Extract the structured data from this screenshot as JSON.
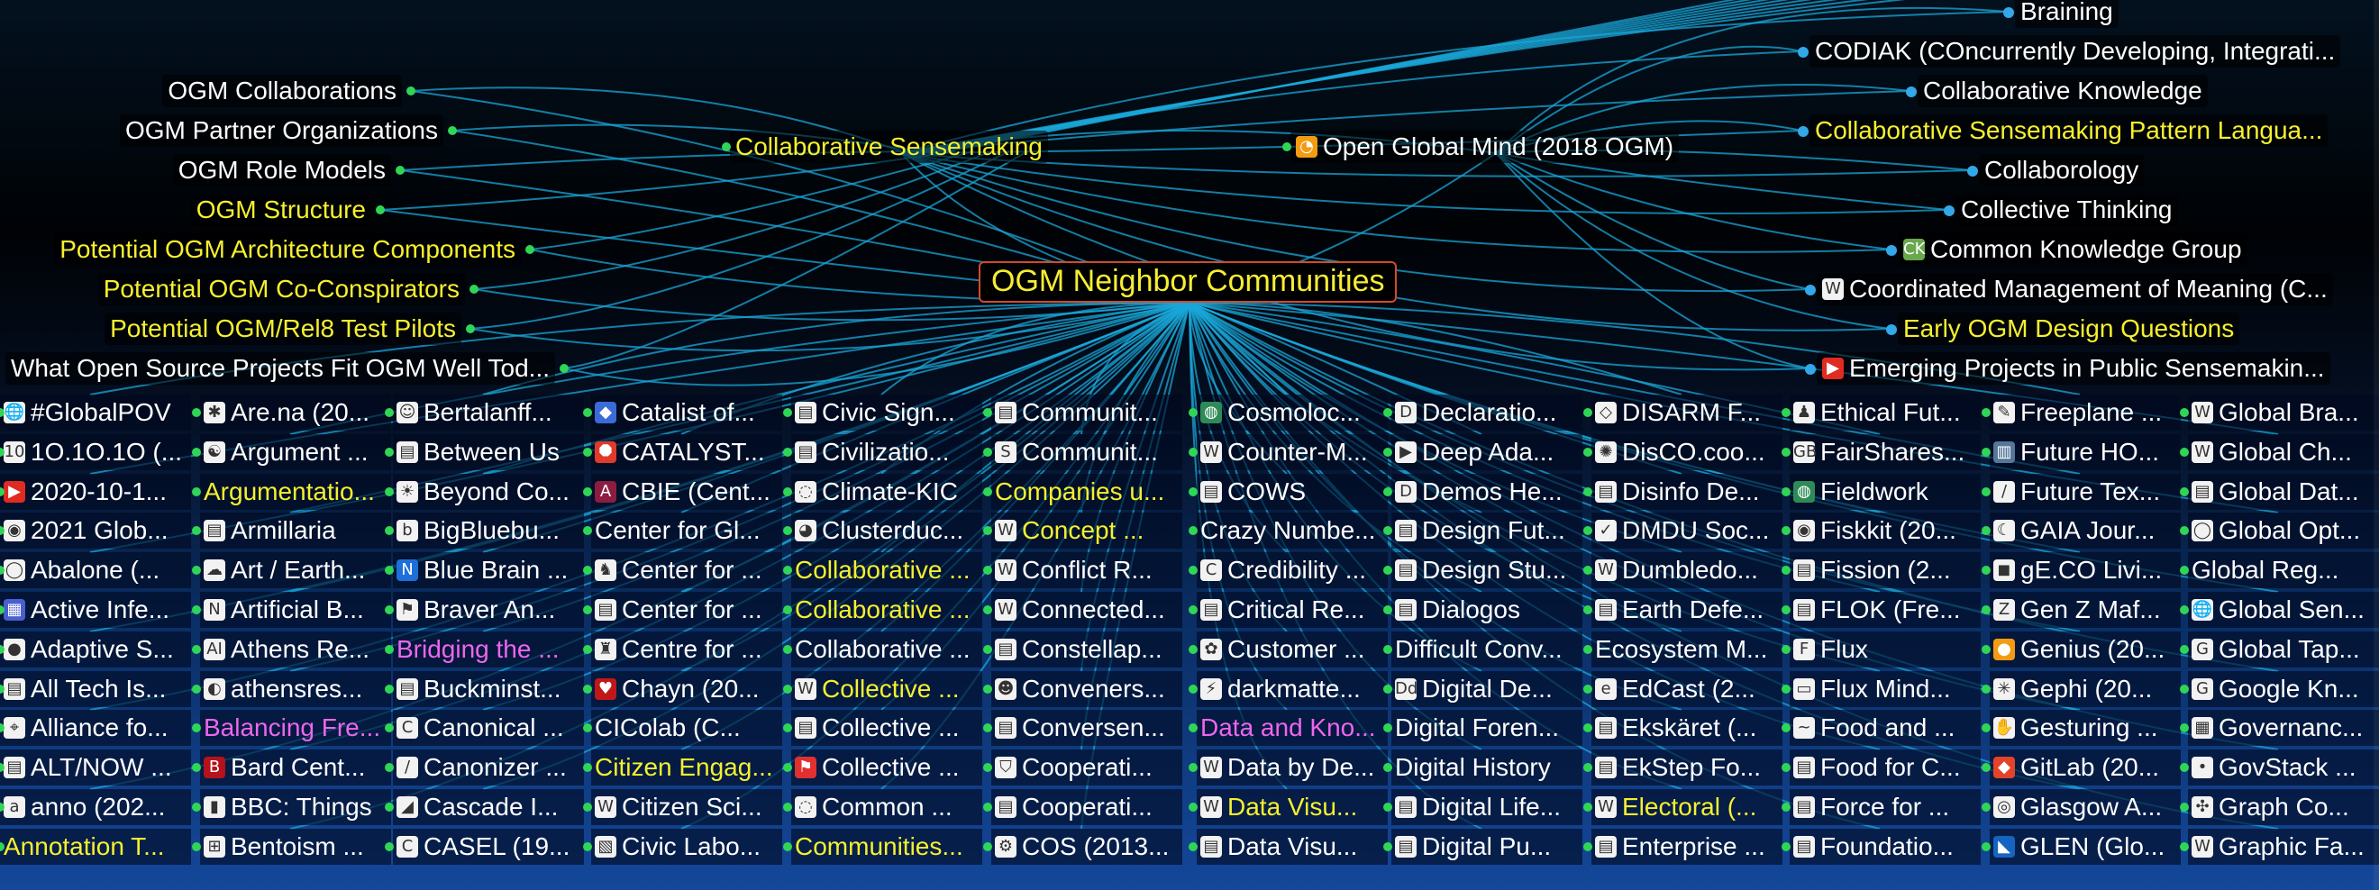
{
  "center": {
    "label": "OGM Neighbor Communities"
  },
  "left_nodes": [
    {
      "label": "OGM Collaborations",
      "color": "white"
    },
    {
      "label": "OGM Partner Organizations",
      "color": "white"
    },
    {
      "label": "OGM Role Models",
      "color": "white"
    },
    {
      "label": "OGM Structure",
      "color": "yellow"
    },
    {
      "label": "Potential OGM Architecture Components",
      "color": "yellow"
    },
    {
      "label": "Potential OGM Co-Conspirators",
      "color": "yellow"
    },
    {
      "label": "Potential OGM/Rel8 Test Pilots",
      "color": "yellow"
    },
    {
      "label": "What Open Source Projects Fit OGM Well Tod...",
      "color": "white"
    }
  ],
  "top_middle_nodes": [
    {
      "label": "Collaborative Sensemaking",
      "color": "yellow",
      "icon": ""
    },
    {
      "label": "Open Global Mind (2018 OGM)",
      "color": "white",
      "icon": "ogm-icon"
    }
  ],
  "right_nodes": [
    {
      "label": "Braining",
      "color": "white",
      "icon": ""
    },
    {
      "label": "CODIAK (COncurrently Developing, Integrati...",
      "color": "white",
      "icon": ""
    },
    {
      "label": "Collaborative Knowledge",
      "color": "white",
      "icon": ""
    },
    {
      "label": "Collaborative Sensemaking Pattern Langua...",
      "color": "yellow",
      "icon": ""
    },
    {
      "label": "Collaborology",
      "color": "white",
      "icon": ""
    },
    {
      "label": "Collective Thinking",
      "color": "white",
      "icon": ""
    },
    {
      "label": "Common Knowledge Group",
      "color": "white",
      "icon": "ck-icon"
    },
    {
      "label": "Coordinated Management of Meaning (C...",
      "color": "white",
      "icon": "wikipedia-icon"
    },
    {
      "label": "Early OGM Design Questions",
      "color": "yellow",
      "icon": ""
    },
    {
      "label": "Emerging Projects in Public Sensemakin...",
      "color": "white",
      "icon": "youtube-icon"
    }
  ],
  "grid_columns": [
    [
      {
        "label": "#GlobalPOV",
        "color": "white",
        "icon": "globe-icon"
      },
      {
        "label": "1O.1O.1O (...",
        "color": "white",
        "icon": "ten-icon"
      },
      {
        "label": "2020-10-1...",
        "color": "white",
        "icon": "youtube-icon"
      },
      {
        "label": "2021 Glob...",
        "color": "white",
        "icon": "camera-icon"
      },
      {
        "label": "Abalone (...",
        "color": "white",
        "icon": "ring-icon"
      },
      {
        "label": "Active Infe...",
        "color": "white",
        "icon": "calendar-icon"
      },
      {
        "label": "Adaptive S...",
        "color": "white",
        "icon": "circle-icon"
      },
      {
        "label": "All Tech Is...",
        "color": "white",
        "icon": "doc-icon"
      },
      {
        "label": "Alliance fo...",
        "color": "white",
        "icon": "map-icon"
      },
      {
        "label": "ALT/NOW ...",
        "color": "white",
        "icon": "doc-icon"
      },
      {
        "label": "anno (202...",
        "color": "white",
        "icon": "a-icon"
      },
      {
        "label": "Annotation T...",
        "color": "yellow",
        "icon": ""
      }
    ],
    [
      {
        "label": "Are.na (20...",
        "color": "white",
        "icon": "star-icon"
      },
      {
        "label": "Argument ...",
        "color": "white",
        "icon": "yinyang-icon"
      },
      {
        "label": "Argumentatio...",
        "color": "yellow",
        "icon": ""
      },
      {
        "label": "Armillaria",
        "color": "white",
        "icon": "doc-icon"
      },
      {
        "label": "Art / Earth...",
        "color": "white",
        "icon": "cloud-icon"
      },
      {
        "label": "Artificial B...",
        "color": "white",
        "icon": "n-icon"
      },
      {
        "label": "Athens Re...",
        "color": "white",
        "icon": "ai-icon"
      },
      {
        "label": "athensres...",
        "color": "white",
        "icon": "github-icon"
      },
      {
        "label": "Balancing Fre...",
        "color": "pink",
        "icon": ""
      },
      {
        "label": "Bard Cent...",
        "color": "white",
        "icon": "b-icon"
      },
      {
        "label": "BBC: Things",
        "color": "white",
        "icon": "bbc-icon"
      },
      {
        "label": "Bentoism ...",
        "color": "white",
        "icon": "grid-icon"
      }
    ],
    [
      {
        "label": "Bertalanff...",
        "color": "white",
        "icon": "face-icon"
      },
      {
        "label": "Between Us",
        "color": "white",
        "icon": "doc-icon"
      },
      {
        "label": "Beyond Co...",
        "color": "white",
        "icon": "sun-icon"
      },
      {
        "label": "BigBluebu...",
        "color": "white",
        "icon": "b-circle-icon"
      },
      {
        "label": "Blue Brain ...",
        "color": "white",
        "icon": "n-blue-icon"
      },
      {
        "label": "Braver An...",
        "color": "white",
        "icon": "flag-icon"
      },
      {
        "label": "Bridging the ...",
        "color": "pink",
        "icon": ""
      },
      {
        "label": "Buckminst...",
        "color": "white",
        "icon": "doc-icon"
      },
      {
        "label": "Canonical ...",
        "color": "white",
        "icon": "c-icon"
      },
      {
        "label": "Canonizer ...",
        "color": "white",
        "icon": "slash-icon"
      },
      {
        "label": "Cascade I...",
        "color": "white",
        "icon": "cascade-icon"
      },
      {
        "label": "CASEL (19...",
        "color": "white",
        "icon": "casel-icon"
      }
    ],
    [
      {
        "label": "Catalist of...",
        "color": "white",
        "icon": "cube-icon"
      },
      {
        "label": "CATALYST...",
        "color": "white",
        "icon": "octagon-icon"
      },
      {
        "label": "CBIE (Cent...",
        "color": "white",
        "icon": "asu-icon"
      },
      {
        "label": "Center for Gl...",
        "color": "white",
        "icon": ""
      },
      {
        "label": "Center for ...",
        "color": "white",
        "icon": "deer-icon"
      },
      {
        "label": "Center for ...",
        "color": "white",
        "icon": "doc-icon"
      },
      {
        "label": "Centre for ...",
        "color": "white",
        "icon": "crest-icon"
      },
      {
        "label": "Chayn (20...",
        "color": "white",
        "icon": "heart-icon"
      },
      {
        "label": "CIColab (C...",
        "color": "white",
        "icon": ""
      },
      {
        "label": "Citizen Engag...",
        "color": "yellow",
        "icon": ""
      },
      {
        "label": "Citizen Sci...",
        "color": "white",
        "icon": "wikipedia-icon"
      },
      {
        "label": "Civic Labo...",
        "color": "white",
        "icon": "civic-icon"
      }
    ],
    [
      {
        "label": "Civic Sign...",
        "color": "white",
        "icon": "doc-icon"
      },
      {
        "label": "Civilizatio...",
        "color": "white",
        "icon": "doc-icon"
      },
      {
        "label": "Climate-KIC",
        "color": "white",
        "icon": "spiral-icon"
      },
      {
        "label": "Clusterduc...",
        "color": "white",
        "icon": "duck-icon"
      },
      {
        "label": "Collaborative ...",
        "color": "yellow",
        "icon": ""
      },
      {
        "label": "Collaborative ...",
        "color": "yellow",
        "icon": ""
      },
      {
        "label": "Collaborative ...",
        "color": "white",
        "icon": ""
      },
      {
        "label": "Collective ...",
        "color": "yellow",
        "icon": "wikipedia-icon"
      },
      {
        "label": "Collective ...",
        "color": "white",
        "icon": "doc-icon"
      },
      {
        "label": "Collective ...",
        "color": "white",
        "icon": "flag-red-icon"
      },
      {
        "label": "Common ...",
        "color": "white",
        "icon": "spiral-icon"
      },
      {
        "label": "Communities...",
        "color": "yellow",
        "icon": ""
      }
    ],
    [
      {
        "label": "Communit...",
        "color": "white",
        "icon": "doc-icon"
      },
      {
        "label": "Communit...",
        "color": "white",
        "icon": "s-icon"
      },
      {
        "label": "Companies u...",
        "color": "yellow",
        "icon": ""
      },
      {
        "label": "Concept ...",
        "color": "yellow",
        "icon": "wikipedia-icon"
      },
      {
        "label": "Conflict R...",
        "color": "white",
        "icon": "wikipedia-icon"
      },
      {
        "label": "Connected...",
        "color": "white",
        "icon": "wordpress-icon"
      },
      {
        "label": "Constellap...",
        "color": "white",
        "icon": "doc-icon"
      },
      {
        "label": "Conveners...",
        "color": "white",
        "icon": "people-icon"
      },
      {
        "label": "Conversen...",
        "color": "white",
        "icon": "doc-icon"
      },
      {
        "label": "Cooperati...",
        "color": "white",
        "icon": "shield-icon"
      },
      {
        "label": "Cooperati...",
        "color": "white",
        "icon": "doc-icon"
      },
      {
        "label": "COS (2013...",
        "color": "white",
        "icon": "cos-icon"
      }
    ],
    [
      {
        "label": "Cosmoloc...",
        "color": "white",
        "icon": "globe-green-icon"
      },
      {
        "label": "Counter-M...",
        "color": "white",
        "icon": "wikipedia-icon"
      },
      {
        "label": "COWS",
        "color": "white",
        "icon": "doc-icon"
      },
      {
        "label": "Crazy Numbe...",
        "color": "white",
        "icon": ""
      },
      {
        "label": "Credibility ...",
        "color": "white",
        "icon": "c-ring-icon"
      },
      {
        "label": "Critical Re...",
        "color": "white",
        "icon": "doc-icon"
      },
      {
        "label": "Customer ...",
        "color": "white",
        "icon": "flower-icon"
      },
      {
        "label": "darkmatte...",
        "color": "white",
        "icon": "bolt-icon"
      },
      {
        "label": "Data and Kno...",
        "color": "pink",
        "icon": ""
      },
      {
        "label": "Data by De...",
        "color": "white",
        "icon": "wordpress-icon"
      },
      {
        "label": "Data Visu...",
        "color": "yellow",
        "icon": "wikipedia-icon"
      },
      {
        "label": "Data Visu...",
        "color": "white",
        "icon": "doc-icon"
      }
    ],
    [
      {
        "label": "Declaratio...",
        "color": "white",
        "icon": "decl-icon"
      },
      {
        "label": "Deep Ada...",
        "color": "white",
        "icon": "play-icon"
      },
      {
        "label": "Demos He...",
        "color": "white",
        "icon": "d-icon"
      },
      {
        "label": "Design Fut...",
        "color": "white",
        "icon": "doc-icon"
      },
      {
        "label": "Design Stu...",
        "color": "white",
        "icon": "doc-icon"
      },
      {
        "label": "Dialogos",
        "color": "white",
        "icon": "doc-icon"
      },
      {
        "label": "Difficult Conv...",
        "color": "white",
        "icon": ""
      },
      {
        "label": "Digital De...",
        "color": "white",
        "icon": "dd-icon"
      },
      {
        "label": "Digital Foren...",
        "color": "white",
        "icon": ""
      },
      {
        "label": "Digital History",
        "color": "white",
        "icon": ""
      },
      {
        "label": "Digital Life...",
        "color": "white",
        "icon": "doc-icon"
      },
      {
        "label": "Digital Pu...",
        "color": "white",
        "icon": "doc-icon"
      }
    ],
    [
      {
        "label": "DISARM F...",
        "color": "white",
        "icon": "disarm-icon"
      },
      {
        "label": "DisCO.coo...",
        "color": "white",
        "icon": "octopus-icon"
      },
      {
        "label": "Disinfo De...",
        "color": "white",
        "icon": "doc-icon"
      },
      {
        "label": "DMDU Soc...",
        "color": "white",
        "icon": "check-icon"
      },
      {
        "label": "Dumbledo...",
        "color": "white",
        "icon": "w-icon"
      },
      {
        "label": "Earth Defe...",
        "color": "white",
        "icon": "doc-icon"
      },
      {
        "label": "Ecosystem M...",
        "color": "white",
        "icon": ""
      },
      {
        "label": "EdCast (2...",
        "color": "white",
        "icon": "edcast-icon"
      },
      {
        "label": "Ekskäret (...",
        "color": "white",
        "icon": "doc-icon"
      },
      {
        "label": "EkStep Fo...",
        "color": "white",
        "icon": "doc-icon"
      },
      {
        "label": "Electoral (...",
        "color": "yellow",
        "icon": "wikipedia-icon"
      },
      {
        "label": "Enterprise ...",
        "color": "white",
        "icon": "doc-icon"
      }
    ],
    [
      {
        "label": "Ethical Fut...",
        "color": "white",
        "icon": "person-icon"
      },
      {
        "label": "FairShares...",
        "color": "white",
        "icon": "gb-icon"
      },
      {
        "label": "Fieldwork",
        "color": "white",
        "icon": "globe-green-icon"
      },
      {
        "label": "Fiskkit (20...",
        "color": "white",
        "icon": "camera-icon"
      },
      {
        "label": "Fission (2...",
        "color": "white",
        "icon": "doc-icon"
      },
      {
        "label": "FLOK (Fre...",
        "color": "white",
        "icon": "doc-icon"
      },
      {
        "label": "Flux",
        "color": "white",
        "icon": "f-icon"
      },
      {
        "label": "Flux Mind...",
        "color": "white",
        "icon": "monitor-icon"
      },
      {
        "label": "Food and ...",
        "color": "white",
        "icon": "swoosh-icon"
      },
      {
        "label": "Food for C...",
        "color": "white",
        "icon": "doc-icon"
      },
      {
        "label": "Force for ...",
        "color": "white",
        "icon": "doc-icon"
      },
      {
        "label": "Foundatio...",
        "color": "white",
        "icon": "doc-icon"
      }
    ],
    [
      {
        "label": "Freeplane ...",
        "color": "white",
        "icon": "freeplane-icon"
      },
      {
        "label": "Future HO...",
        "color": "white",
        "icon": "chart-icon"
      },
      {
        "label": "Future Tex...",
        "color": "white",
        "icon": "slash-icon"
      },
      {
        "label": "GAIA Jour...",
        "color": "white",
        "icon": "moon-icon"
      },
      {
        "label": "gE.CO Livi...",
        "color": "white",
        "icon": "dark-icon"
      },
      {
        "label": "Gen Z Maf...",
        "color": "white",
        "icon": "z-icon"
      },
      {
        "label": "Genius (20...",
        "color": "white",
        "icon": "orange-icon"
      },
      {
        "label": "Gephi (20...",
        "color": "white",
        "icon": "gephi-icon"
      },
      {
        "label": "Gesturing ...",
        "color": "white",
        "icon": "gesture-icon"
      },
      {
        "label": "GitLab (20...",
        "color": "white",
        "icon": "gitlab-icon"
      },
      {
        "label": "Glasgow A...",
        "color": "white",
        "icon": "glasgow-icon"
      },
      {
        "label": "GLEN (Glo...",
        "color": "white",
        "icon": "glen-icon"
      }
    ],
    [
      {
        "label": "Global Bra...",
        "color": "white",
        "icon": "wikipedia-icon"
      },
      {
        "label": "Global Ch...",
        "color": "white",
        "icon": "wordpress-icon"
      },
      {
        "label": "Global Dat...",
        "color": "white",
        "icon": "doc-icon"
      },
      {
        "label": "Global Opt...",
        "color": "white",
        "icon": "ring-icon"
      },
      {
        "label": "Global Reg...",
        "color": "white",
        "icon": ""
      },
      {
        "label": "Global Sen...",
        "color": "white",
        "icon": "globe-icon"
      },
      {
        "label": "Global Tap...",
        "color": "white",
        "icon": "gt-icon"
      },
      {
        "label": "Google Kn...",
        "color": "white",
        "icon": "google-icon"
      },
      {
        "label": "Governanc...",
        "color": "white",
        "icon": "gov-icon"
      },
      {
        "label": "GovStack ...",
        "color": "white",
        "icon": "dot-icon"
      },
      {
        "label": "Graph Co...",
        "color": "white",
        "icon": "graph-icon"
      },
      {
        "label": "Graphic Fa...",
        "color": "white",
        "icon": "wikipedia-icon"
      }
    ]
  ]
}
